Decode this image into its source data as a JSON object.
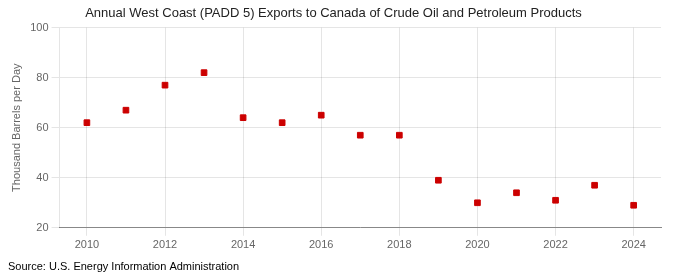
{
  "chart_data": {
    "type": "scatter",
    "title": "Annual West Coast (PADD 5) Exports to Canada of Crude Oil and Petroleum Products",
    "ylabel": "Thousand Barrels per Day",
    "annotations": [
      "Source: U.S. Energy Information Administration"
    ],
    "x": [
      2010,
      2011,
      2012,
      2013,
      2014,
      2015,
      2016,
      2017,
      2018,
      2019,
      2020,
      2021,
      2022,
      2023,
      2024
    ],
    "values": [
      62,
      67,
      77,
      82,
      64,
      62,
      65,
      57,
      57,
      39,
      30,
      34,
      31,
      37,
      29
    ],
    "color": "#cc0000",
    "marker": "square",
    "xlim": [
      2009.3,
      2024.7
    ],
    "xticks": [
      2010,
      2012,
      2014,
      2016,
      2018,
      2020,
      2022,
      2024
    ],
    "ylim": [
      20,
      100
    ],
    "yticks": [
      20,
      40,
      60,
      80,
      100
    ],
    "grid": true
  }
}
